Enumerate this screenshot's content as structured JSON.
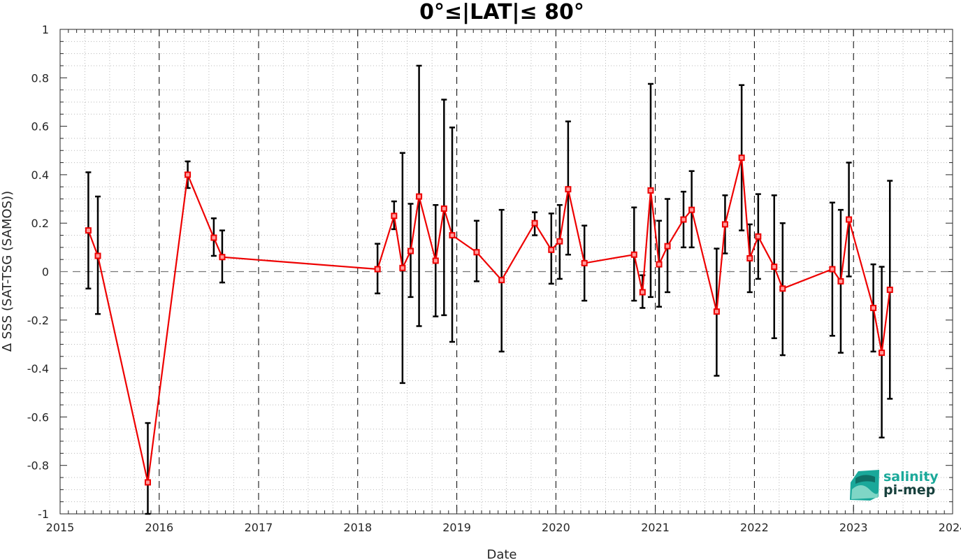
{
  "chart_data": {
    "type": "scatter",
    "title": "0°≤|LAT|≤ 80°",
    "xlabel": "Date",
    "ylabel": "Δ SSS (SAT-TSG (SAMOS))",
    "xlim": [
      "2015-01-01",
      "2024-01-01"
    ],
    "ylim": [
      -1,
      1
    ],
    "x_ticks": [
      "2015",
      "2016",
      "2017",
      "2018",
      "2019",
      "2020",
      "2021",
      "2022",
      "2023",
      "2024"
    ],
    "y_ticks": [
      "-1",
      "-0.8",
      "-0.6",
      "-0.4",
      "-0.2",
      "0",
      "0.2",
      "0.4",
      "0.6",
      "0.8",
      "1"
    ],
    "grid": "minor-dotted",
    "reference_line": 0,
    "year_markers": [
      "2016-01-01",
      "2017-01-01",
      "2018-01-01",
      "2019-01-01",
      "2020-01-01",
      "2021-01-01",
      "2022-01-01",
      "2023-01-01"
    ],
    "series": [
      {
        "color": "#ee0000",
        "errorbar_color": "#000000",
        "points": [
          {
            "date": "2015-04-15",
            "y": 0.17,
            "lo": -0.07,
            "hi": 0.41
          },
          {
            "date": "2015-05-20",
            "y": 0.065,
            "lo": -0.175,
            "hi": 0.31
          },
          {
            "date": "2015-11-20",
            "y": -0.87,
            "lo": -1.0,
            "hi": -0.625
          },
          {
            "date": "2016-04-15",
            "y": 0.4,
            "lo": 0.345,
            "hi": 0.455
          },
          {
            "date": "2016-07-20",
            "y": 0.14,
            "lo": 0.065,
            "hi": 0.22
          },
          {
            "date": "2016-08-20",
            "y": 0.06,
            "lo": -0.045,
            "hi": 0.17
          },
          {
            "date": "2018-03-15",
            "y": 0.01,
            "lo": -0.09,
            "hi": 0.115
          },
          {
            "date": "2018-05-15",
            "y": 0.23,
            "lo": 0.175,
            "hi": 0.29
          },
          {
            "date": "2018-06-15",
            "y": 0.015,
            "lo": -0.46,
            "hi": 0.49
          },
          {
            "date": "2018-07-15",
            "y": 0.085,
            "lo": -0.105,
            "hi": 0.28
          },
          {
            "date": "2018-08-15",
            "y": 0.31,
            "lo": -0.225,
            "hi": 0.85
          },
          {
            "date": "2018-10-15",
            "y": 0.045,
            "lo": -0.185,
            "hi": 0.275
          },
          {
            "date": "2018-11-15",
            "y": 0.26,
            "lo": -0.18,
            "hi": 0.71
          },
          {
            "date": "2018-12-15",
            "y": 0.15,
            "lo": -0.29,
            "hi": 0.595
          },
          {
            "date": "2019-03-15",
            "y": 0.08,
            "lo": -0.04,
            "hi": 0.21
          },
          {
            "date": "2019-06-15",
            "y": -0.035,
            "lo": -0.33,
            "hi": 0.255
          },
          {
            "date": "2019-10-15",
            "y": 0.2,
            "lo": 0.15,
            "hi": 0.245
          },
          {
            "date": "2019-12-15",
            "y": 0.09,
            "lo": -0.05,
            "hi": 0.24
          },
          {
            "date": "2020-01-15",
            "y": 0.125,
            "lo": -0.03,
            "hi": 0.275
          },
          {
            "date": "2020-02-15",
            "y": 0.34,
            "lo": 0.07,
            "hi": 0.62
          },
          {
            "date": "2020-04-15",
            "y": 0.035,
            "lo": -0.12,
            "hi": 0.19
          },
          {
            "date": "2020-10-15",
            "y": 0.07,
            "lo": -0.12,
            "hi": 0.265
          },
          {
            "date": "2020-11-15",
            "y": -0.085,
            "lo": -0.15,
            "hi": -0.015
          },
          {
            "date": "2020-12-15",
            "y": 0.335,
            "lo": -0.105,
            "hi": 0.775
          },
          {
            "date": "2021-01-15",
            "y": 0.03,
            "lo": -0.145,
            "hi": 0.21
          },
          {
            "date": "2021-02-15",
            "y": 0.105,
            "lo": -0.085,
            "hi": 0.3
          },
          {
            "date": "2021-04-15",
            "y": 0.215,
            "lo": 0.1,
            "hi": 0.33
          },
          {
            "date": "2021-05-15",
            "y": 0.255,
            "lo": 0.1,
            "hi": 0.415
          },
          {
            "date": "2021-08-15",
            "y": -0.165,
            "lo": -0.43,
            "hi": 0.095
          },
          {
            "date": "2021-09-15",
            "y": 0.195,
            "lo": 0.075,
            "hi": 0.315
          },
          {
            "date": "2021-11-15",
            "y": 0.47,
            "lo": 0.17,
            "hi": 0.77
          },
          {
            "date": "2021-12-15",
            "y": 0.055,
            "lo": -0.085,
            "hi": 0.195
          },
          {
            "date": "2022-01-15",
            "y": 0.145,
            "lo": -0.03,
            "hi": 0.32
          },
          {
            "date": "2022-03-15",
            "y": 0.02,
            "lo": -0.275,
            "hi": 0.315
          },
          {
            "date": "2022-04-15",
            "y": -0.07,
            "lo": -0.345,
            "hi": 0.2
          },
          {
            "date": "2022-10-15",
            "y": 0.01,
            "lo": -0.265,
            "hi": 0.285
          },
          {
            "date": "2022-11-15",
            "y": -0.04,
            "lo": -0.335,
            "hi": 0.255
          },
          {
            "date": "2022-12-15",
            "y": 0.215,
            "lo": -0.02,
            "hi": 0.45
          },
          {
            "date": "2023-03-15",
            "y": -0.15,
            "lo": -0.33,
            "hi": 0.03
          },
          {
            "date": "2023-04-15",
            "y": -0.335,
            "lo": -0.685,
            "hi": 0.02
          },
          {
            "date": "2023-05-15",
            "y": -0.075,
            "lo": -0.525,
            "hi": 0.375
          }
        ]
      }
    ]
  },
  "logo": {
    "line1": "salinity",
    "line2": "pi-mep",
    "color1": "#1ba99a",
    "color2": "#17403c"
  }
}
